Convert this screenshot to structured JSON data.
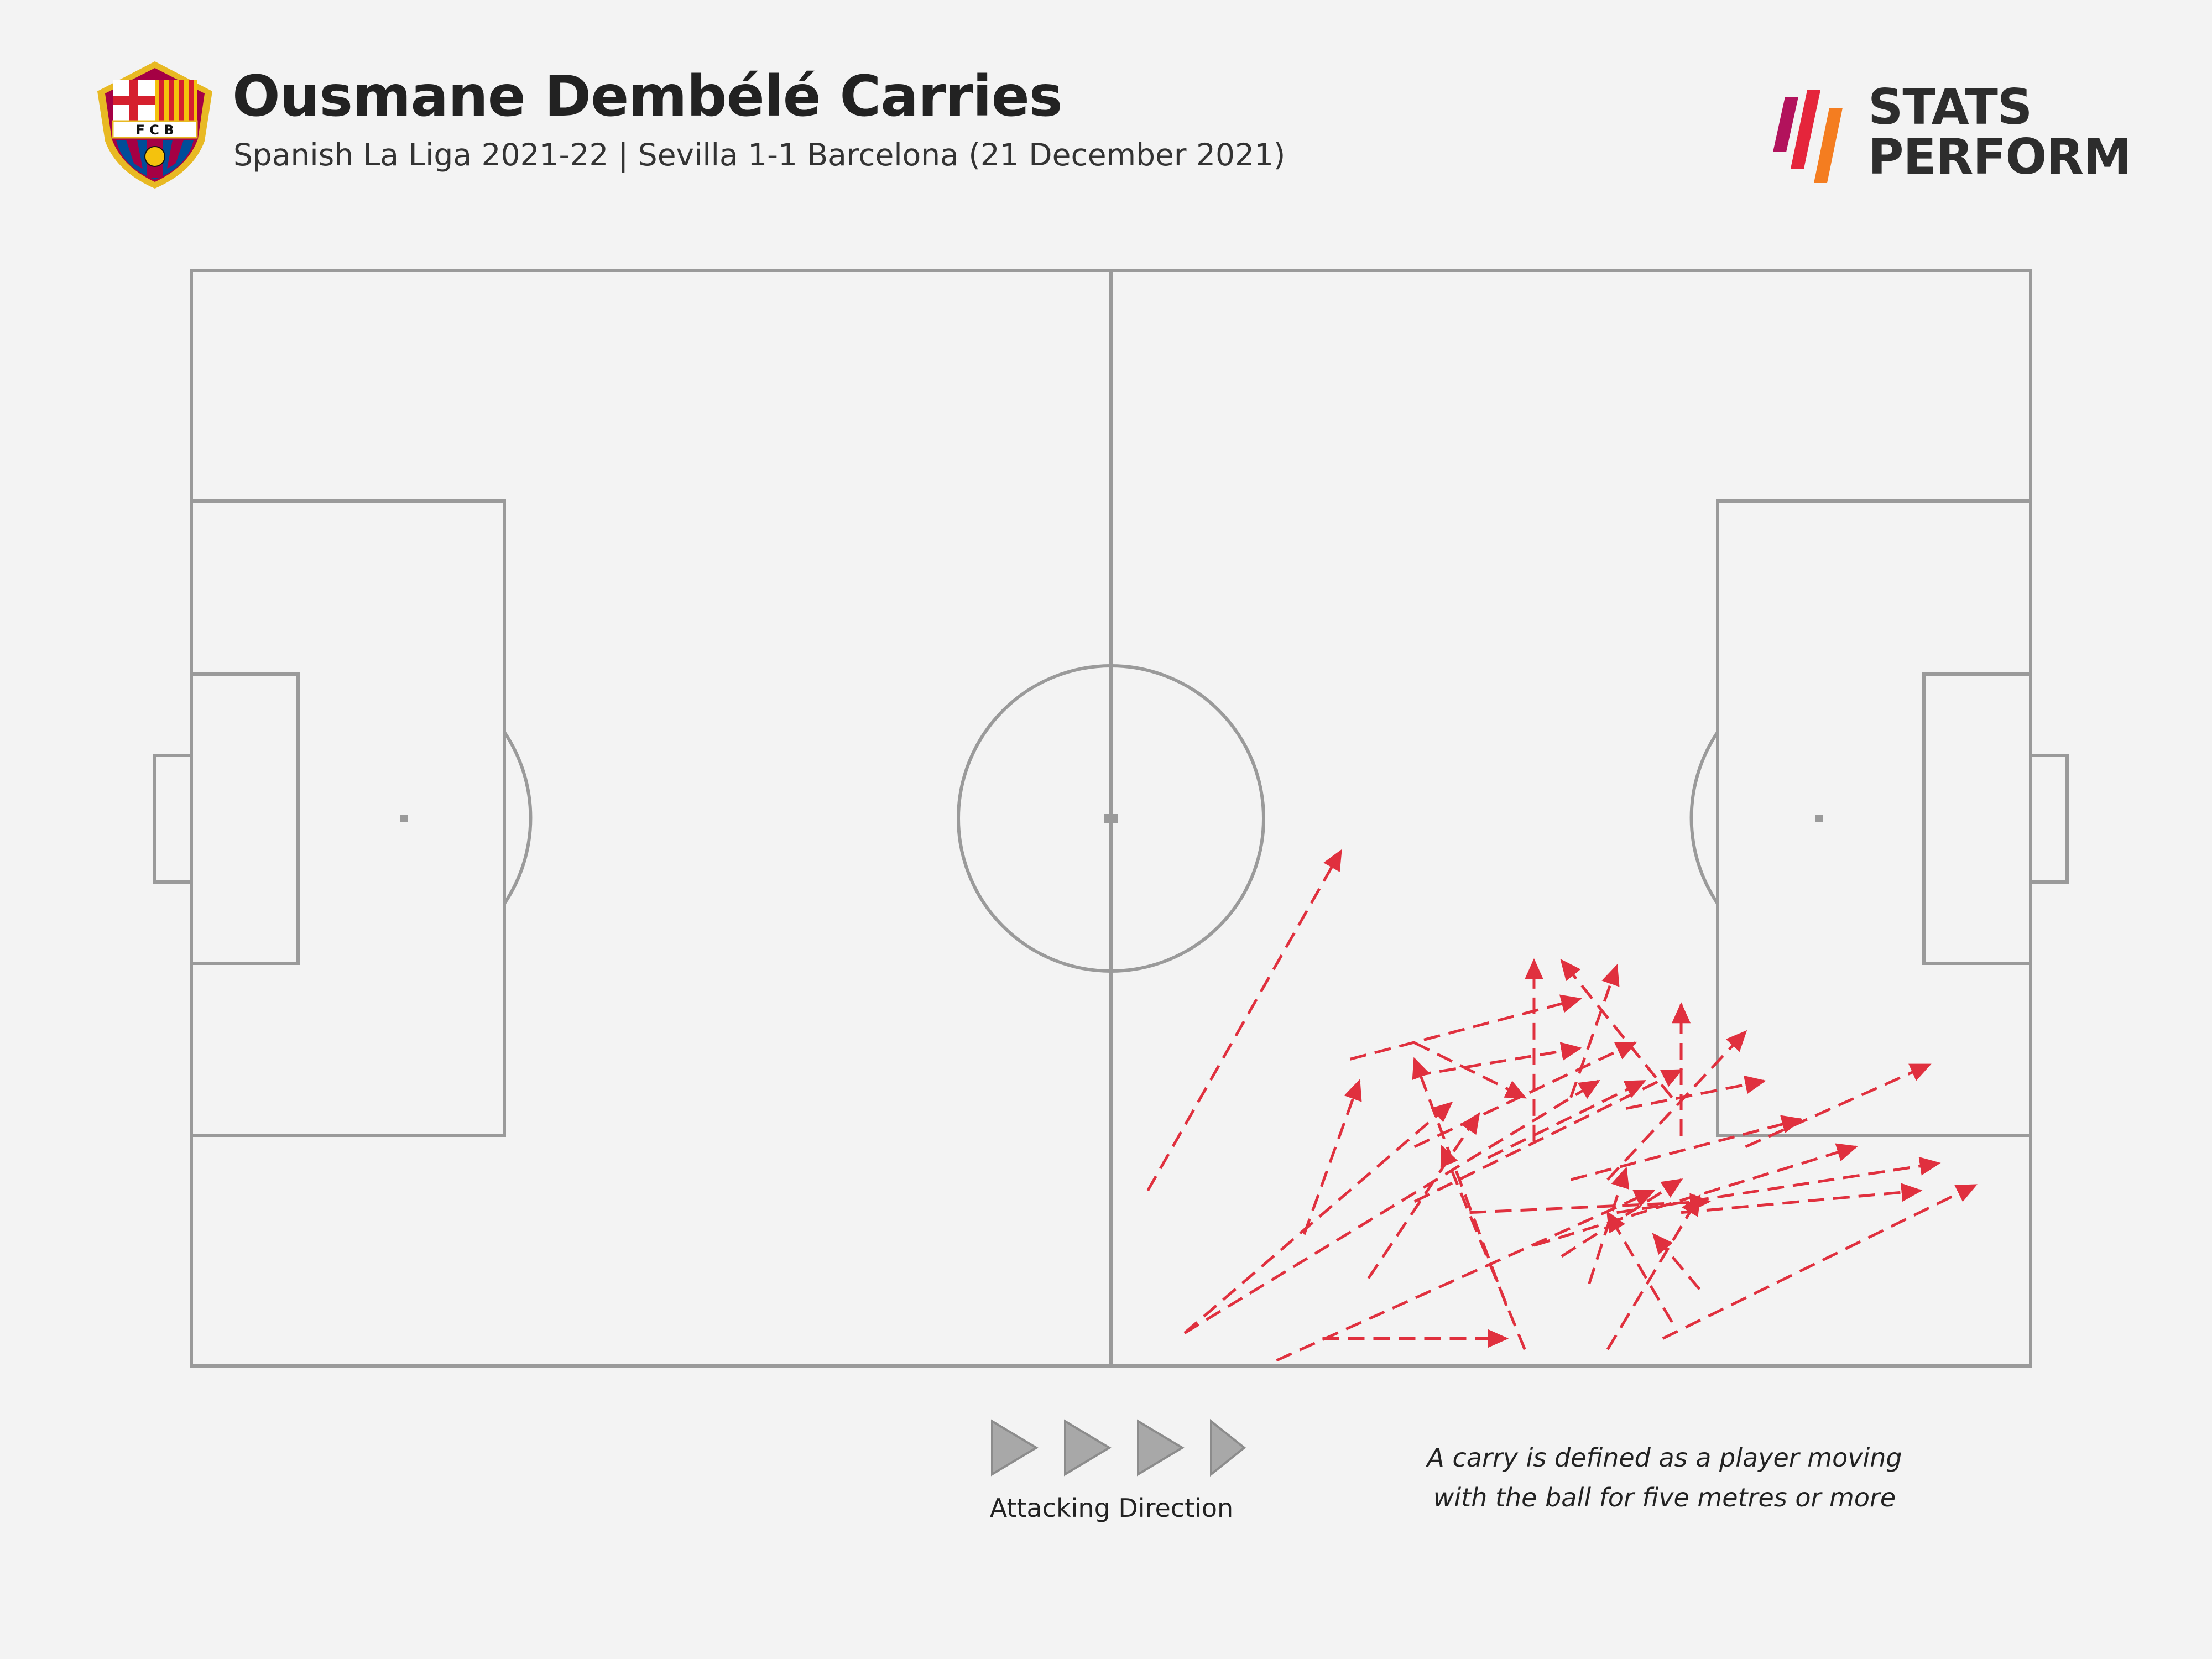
{
  "header": {
    "title": "Ousmane Dembélé Carries",
    "subtitle": "Spanish La Liga 2021-22 | Sevilla 1-1 Barcelona (21 December 2021)"
  },
  "crest": {
    "text": "FCB"
  },
  "brand": {
    "line1": "STATS",
    "line2": "PERFORM"
  },
  "footer": {
    "direction_label": "Attacking Direction",
    "note_line1": "A carry is defined as a player moving",
    "note_line2": "with the ball for five metres or more"
  },
  "colors": {
    "background": "#f3f3f3",
    "pitch_lines": "#9a9a9a",
    "carry": "#e0303e",
    "direction_arrow": "#a8a8a8"
  },
  "chart_data": {
    "type": "scatter",
    "description_units": "pitch coordinates 0-100 (x = length toward attacking goal, y = width from bottom touchline)",
    "carries": [
      {
        "start": [
          52,
          16
        ],
        "end": [
          62.5,
          47
        ]
      },
      {
        "start": [
          60.5,
          12
        ],
        "end": [
          63.5,
          26
        ]
      },
      {
        "start": [
          54,
          3
        ],
        "end": [
          68.5,
          24
        ]
      },
      {
        "start": [
          54,
          3
        ],
        "end": [
          76.5,
          26
        ]
      },
      {
        "start": [
          59,
          0.5
        ],
        "end": [
          79.5,
          16
        ]
      },
      {
        "start": [
          61.5,
          2.5
        ],
        "end": [
          71.5,
          2.5
        ]
      },
      {
        "start": [
          66.5,
          29.5
        ],
        "end": [
          72.5,
          24.5
        ]
      },
      {
        "start": [
          63,
          28
        ],
        "end": [
          75.5,
          33.5
        ]
      },
      {
        "start": [
          66.5,
          26.5
        ],
        "end": [
          75.5,
          29
        ]
      },
      {
        "start": [
          66.5,
          20
        ],
        "end": [
          78.5,
          29.5
        ]
      },
      {
        "start": [
          66.5,
          15
        ],
        "end": [
          81,
          27
        ]
      },
      {
        "start": [
          70.5,
          19
        ],
        "end": [
          79,
          26
        ]
      },
      {
        "start": [
          69.5,
          14
        ],
        "end": [
          82.5,
          15
        ]
      },
      {
        "start": [
          72.5,
          1.5
        ],
        "end": [
          68,
          20
        ]
      },
      {
        "start": [
          64,
          8
        ],
        "end": [
          70,
          23
        ]
      },
      {
        "start": [
          77,
          1.5
        ],
        "end": [
          82,
          15.5
        ]
      },
      {
        "start": [
          74.5,
          10
        ],
        "end": [
          81,
          17
        ]
      },
      {
        "start": [
          76,
          7.5
        ],
        "end": [
          78,
          18
        ]
      },
      {
        "start": [
          73,
          20.5
        ],
        "end": [
          73,
          37
        ]
      },
      {
        "start": [
          77,
          17
        ],
        "end": [
          84.5,
          30.5
        ]
      },
      {
        "start": [
          75,
          24.5
        ],
        "end": [
          77.5,
          36.5
        ]
      },
      {
        "start": [
          71.5,
          5.5
        ],
        "end": [
          66.5,
          28
        ]
      },
      {
        "start": [
          78,
          23.5
        ],
        "end": [
          85.5,
          26
        ]
      },
      {
        "start": [
          80.5,
          24.5
        ],
        "end": [
          74.5,
          37
        ]
      },
      {
        "start": [
          81,
          21
        ],
        "end": [
          81,
          33
        ]
      },
      {
        "start": [
          75,
          17
        ],
        "end": [
          87.5,
          22.5
        ]
      },
      {
        "start": [
          73,
          11
        ],
        "end": [
          90.5,
          20
        ]
      },
      {
        "start": [
          81,
          14
        ],
        "end": [
          94,
          16
        ]
      },
      {
        "start": [
          77.5,
          14
        ],
        "end": [
          95,
          18.5
        ]
      },
      {
        "start": [
          80,
          2.5
        ],
        "end": [
          97,
          16.5
        ]
      },
      {
        "start": [
          84.5,
          20
        ],
        "end": [
          94.5,
          27.5
        ]
      },
      {
        "start": [
          82,
          7
        ],
        "end": [
          79.5,
          12
        ]
      },
      {
        "start": [
          80.5,
          4
        ],
        "end": [
          77,
          14
        ]
      }
    ]
  }
}
